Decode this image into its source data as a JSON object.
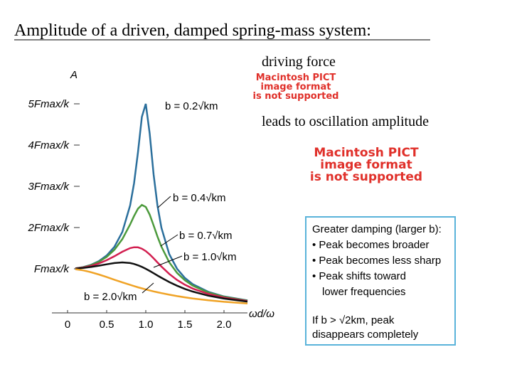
{
  "title": "Amplitude of a driven, damped spring-mass system:",
  "text_1": "driving force",
  "image_1": [
    "Macintosh PICT",
    "image format",
    "is not supported"
  ],
  "text_2": "leads to oscillation amplitude",
  "image_2": [
    "Macintosh PICT",
    "image format",
    "is not supported"
  ],
  "note": {
    "heading": "Greater damping (larger b):",
    "bullets": [
      "• Peak becomes broader",
      "• Peak becomes less sharp",
      "• Peak shifts toward",
      "lower frequencies"
    ],
    "footer": [
      "If b > √2km, peak",
      "disappears completely"
    ]
  },
  "chart_data": {
    "type": "line",
    "xlabel": "ωd/ω",
    "ylabel": "A",
    "x": [
      0.1,
      0.2,
      0.3,
      0.4,
      0.5,
      0.6,
      0.7,
      0.8,
      0.85,
      0.9,
      0.95,
      1.0,
      1.05,
      1.1,
      1.15,
      1.2,
      1.3,
      1.4,
      1.5,
      1.6,
      1.8,
      2.0,
      2.3
    ],
    "series": [
      {
        "name": "b = 0.2√km",
        "color": "#2b6f9c",
        "values": [
          1.01,
          1.041,
          1.097,
          1.185,
          1.322,
          1.536,
          1.891,
          2.538,
          3.073,
          3.821,
          4.683,
          5.0,
          4.279,
          3.288,
          2.525,
          1.995,
          1.356,
          1.0,
          0.778,
          0.628,
          0.441,
          0.33,
          0.232
        ]
      },
      {
        "name": "b = 0.4√km",
        "color": "#4c9a3c",
        "values": [
          1.009,
          1.038,
          1.089,
          1.169,
          1.288,
          1.463,
          1.719,
          2.076,
          2.279,
          2.457,
          2.549,
          2.5,
          2.313,
          2.051,
          1.78,
          1.536,
          1.157,
          0.9,
          0.721,
          0.593,
          0.425,
          0.322,
          0.228
        ]
      },
      {
        "name": "b = 0.7√km",
        "color": "#d21f50",
        "values": [
          1.008,
          1.031,
          1.071,
          1.129,
          1.208,
          1.306,
          1.414,
          1.502,
          1.523,
          1.52,
          1.488,
          1.429,
          1.348,
          1.253,
          1.153,
          1.055,
          0.876,
          0.729,
          0.613,
          0.521,
          0.389,
          0.302,
          0.218
        ]
      },
      {
        "name": "b = 1.0√km",
        "color": "#111111",
        "values": [
          1.005,
          1.02,
          1.044,
          1.075,
          1.109,
          1.14,
          1.155,
          1.14,
          1.118,
          1.087,
          1.047,
          1.0,
          0.948,
          0.893,
          0.837,
          0.782,
          0.679,
          0.589,
          0.512,
          0.448,
          0.348,
          0.277,
          0.205
        ]
      },
      {
        "name": "b = 2.0√km",
        "color": "#f0a326",
        "values": [
          0.99,
          0.962,
          0.917,
          0.862,
          0.8,
          0.735,
          0.671,
          0.61,
          0.581,
          0.552,
          0.526,
          0.5,
          0.476,
          0.452,
          0.431,
          0.41,
          0.372,
          0.338,
          0.308,
          0.281,
          0.236,
          0.2,
          0.159
        ]
      }
    ],
    "xlim": [
      -0.2,
      2.3
    ],
    "ylim": [
      0,
      5.6
    ],
    "xticks": [
      0,
      0.5,
      {
        "value": 1,
        "label": "1.0"
      },
      1.5,
      {
        "value": 2,
        "label": "2.0"
      }
    ],
    "yticks": [
      {
        "value": 1,
        "label": "Fmax/k"
      },
      {
        "value": 2,
        "label": "2Fmax/k"
      },
      {
        "value": 3,
        "label": "3Fmax/k"
      },
      {
        "value": 4,
        "label": "4Fmax/k"
      },
      {
        "value": 5,
        "label": "5Fmax/k"
      }
    ]
  }
}
